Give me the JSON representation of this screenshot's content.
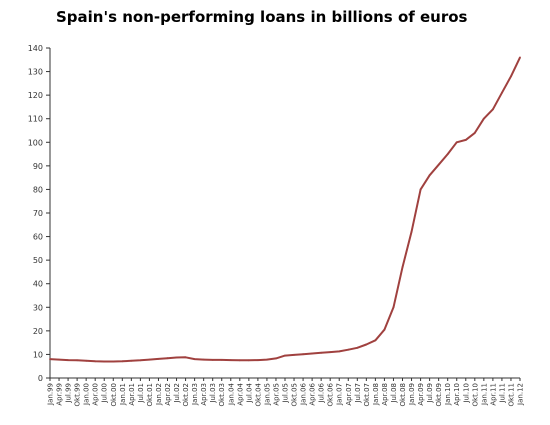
{
  "chart_data": {
    "type": "line",
    "title": "Spain's non-performing loans in billions of euros",
    "xlabel": "",
    "ylabel": "",
    "ylim": [
      0,
      140
    ],
    "y_ticks": [
      0,
      10,
      20,
      30,
      40,
      50,
      60,
      70,
      80,
      90,
      100,
      110,
      120,
      130,
      140
    ],
    "grid": false,
    "legend": "none",
    "line_color": "#a0413f",
    "x_tick_labels": [
      "Jan.99",
      "Apr.99",
      "Jul.99",
      "Okt.99",
      "Jan.00",
      "Apr.00",
      "Jul.00",
      "Okt.00",
      "Jan.01",
      "Apr.01",
      "Jul.01",
      "Okt.01",
      "Jan.02",
      "Apr.02",
      "Jul.02",
      "Okt.02",
      "Jan.03",
      "Apr.03",
      "Jul.03",
      "Okt.03",
      "Jan.04",
      "Apr.04",
      "Jul.04",
      "Okt.04",
      "Jan.05",
      "Apr.05",
      "Jul.05",
      "Okt.05",
      "Jan.06",
      "Apr.06",
      "Jul.06",
      "Okt.06",
      "Jan.07",
      "Apr.07",
      "Jul.07",
      "Okt.07",
      "Jan.08",
      "Apr.08",
      "Jul.08",
      "Okt.08",
      "Jan.09",
      "Apr.09",
      "Jul.09",
      "Okt.09",
      "Jan.10",
      "Apr.10",
      "Jul.10",
      "Okt.10",
      "Jan.11",
      "Apr.11",
      "Jul.11",
      "Okt.11",
      "Jan.12"
    ],
    "series": [
      {
        "x": [
          "1999-01",
          "1999-04",
          "1999-07",
          "1999-10",
          "2000-01",
          "2000-04",
          "2000-07",
          "2000-10",
          "2001-01",
          "2001-04",
          "2001-07",
          "2001-10",
          "2002-01",
          "2002-04",
          "2002-07",
          "2002-10",
          "2003-01",
          "2003-04",
          "2003-07",
          "2003-10",
          "2004-01",
          "2004-04",
          "2004-07",
          "2004-10",
          "2005-01",
          "2005-04",
          "2005-07",
          "2005-10",
          "2006-01",
          "2006-04",
          "2006-07",
          "2006-10",
          "2007-01",
          "2007-04",
          "2007-07",
          "2007-10",
          "2008-01",
          "2008-04",
          "2008-07",
          "2008-10",
          "2009-01",
          "2009-04",
          "2009-07",
          "2009-10",
          "2010-01",
          "2010-04",
          "2010-07",
          "2010-10",
          "2011-01",
          "2011-04",
          "2011-07",
          "2011-10",
          "2012-01"
        ],
        "values": [
          8.0,
          7.8,
          7.6,
          7.5,
          7.3,
          7.1,
          7.0,
          7.0,
          7.1,
          7.3,
          7.5,
          7.8,
          8.1,
          8.4,
          8.7,
          8.8,
          8.0,
          7.8,
          7.7,
          7.7,
          7.6,
          7.5,
          7.5,
          7.6,
          7.8,
          8.3,
          9.5,
          9.8,
          10.1,
          10.4,
          10.7,
          11.0,
          11.3,
          12.0,
          12.8,
          14.2,
          16.0,
          20.5,
          30.0,
          47.0,
          62.0,
          80.0,
          86.0,
          90.5,
          95.0,
          100.0,
          101.0,
          104.0,
          110.0,
          114.0,
          121.0,
          128.0,
          136.0
        ]
      }
    ]
  }
}
